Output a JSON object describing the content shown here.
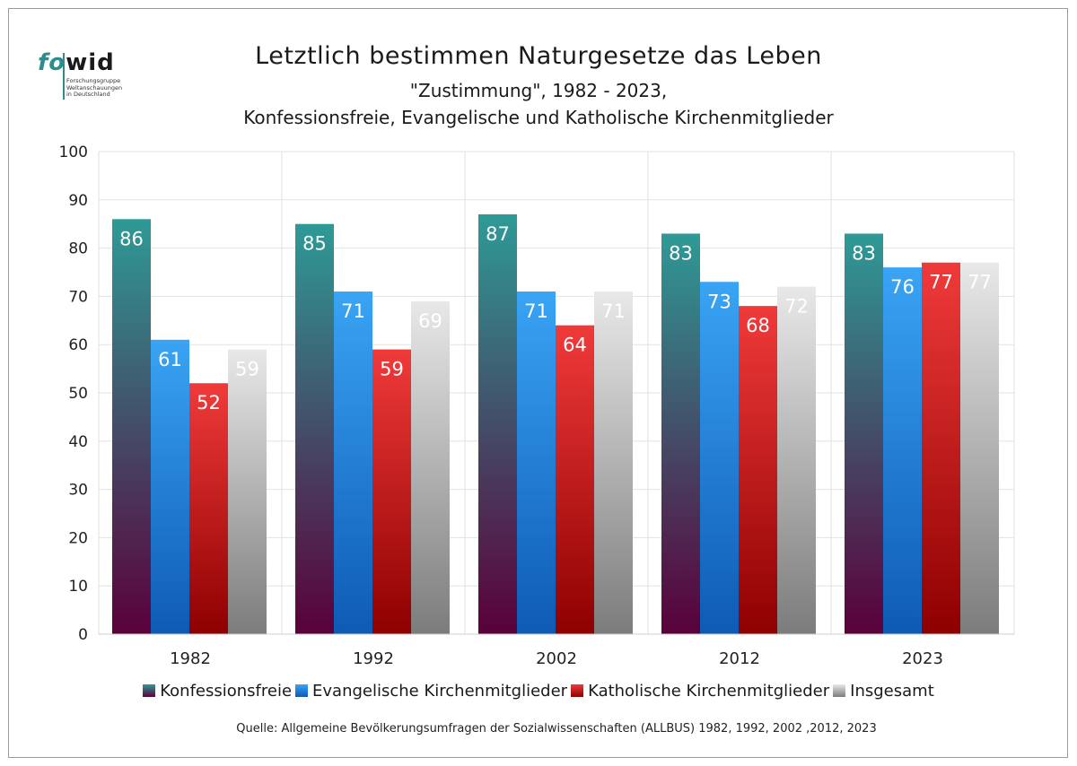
{
  "logo": {
    "word_fo": "fo",
    "word_wid": "wid",
    "tagline": [
      "Forschungsgruppe",
      "Weltanschauungen",
      "in Deutschland"
    ]
  },
  "titles": {
    "title": "Letztlich bestimmen Naturgesetze das Leben",
    "subtitle1": "\"Zustimmung\", 1982 - 2023,",
    "subtitle2": "Konfessionsfreie, Evangelische und Katholische Kirchenmitglieder"
  },
  "source": "Quelle: Allgemeine Bevölkerungsumfragen der Sozialwissenschaften (ALLBUS) 1982, 1992, 2002 ,2012, 2023",
  "chart_data": {
    "type": "bar",
    "categories": [
      "1982",
      "1992",
      "2002",
      "2012",
      "2023"
    ],
    "ylim": [
      0,
      100
    ],
    "yticks": [
      0,
      10,
      20,
      30,
      40,
      50,
      60,
      70,
      80,
      90,
      100
    ],
    "grid": true,
    "legend_position": "bottom",
    "series": [
      {
        "name": "Konfessionsfreie",
        "values": [
          86,
          85,
          87,
          83,
          83
        ],
        "color_top": "#2e9a96",
        "color_bottom": "#5a003a"
      },
      {
        "name": "Evangelische Kirchenmitglieder",
        "values": [
          61,
          71,
          71,
          73,
          76
        ],
        "color_top": "#3aa4f4",
        "color_bottom": "#0e5ab4"
      },
      {
        "name": "Katholische Kirchenmitglieder",
        "values": [
          52,
          59,
          64,
          68,
          77
        ],
        "color_top": "#f03a3a",
        "color_bottom": "#8e0000"
      },
      {
        "name": "Insgesamt",
        "values": [
          59,
          69,
          71,
          72,
          77
        ],
        "color_top": "#e8e8e8",
        "color_bottom": "#7c7c7c"
      }
    ]
  }
}
